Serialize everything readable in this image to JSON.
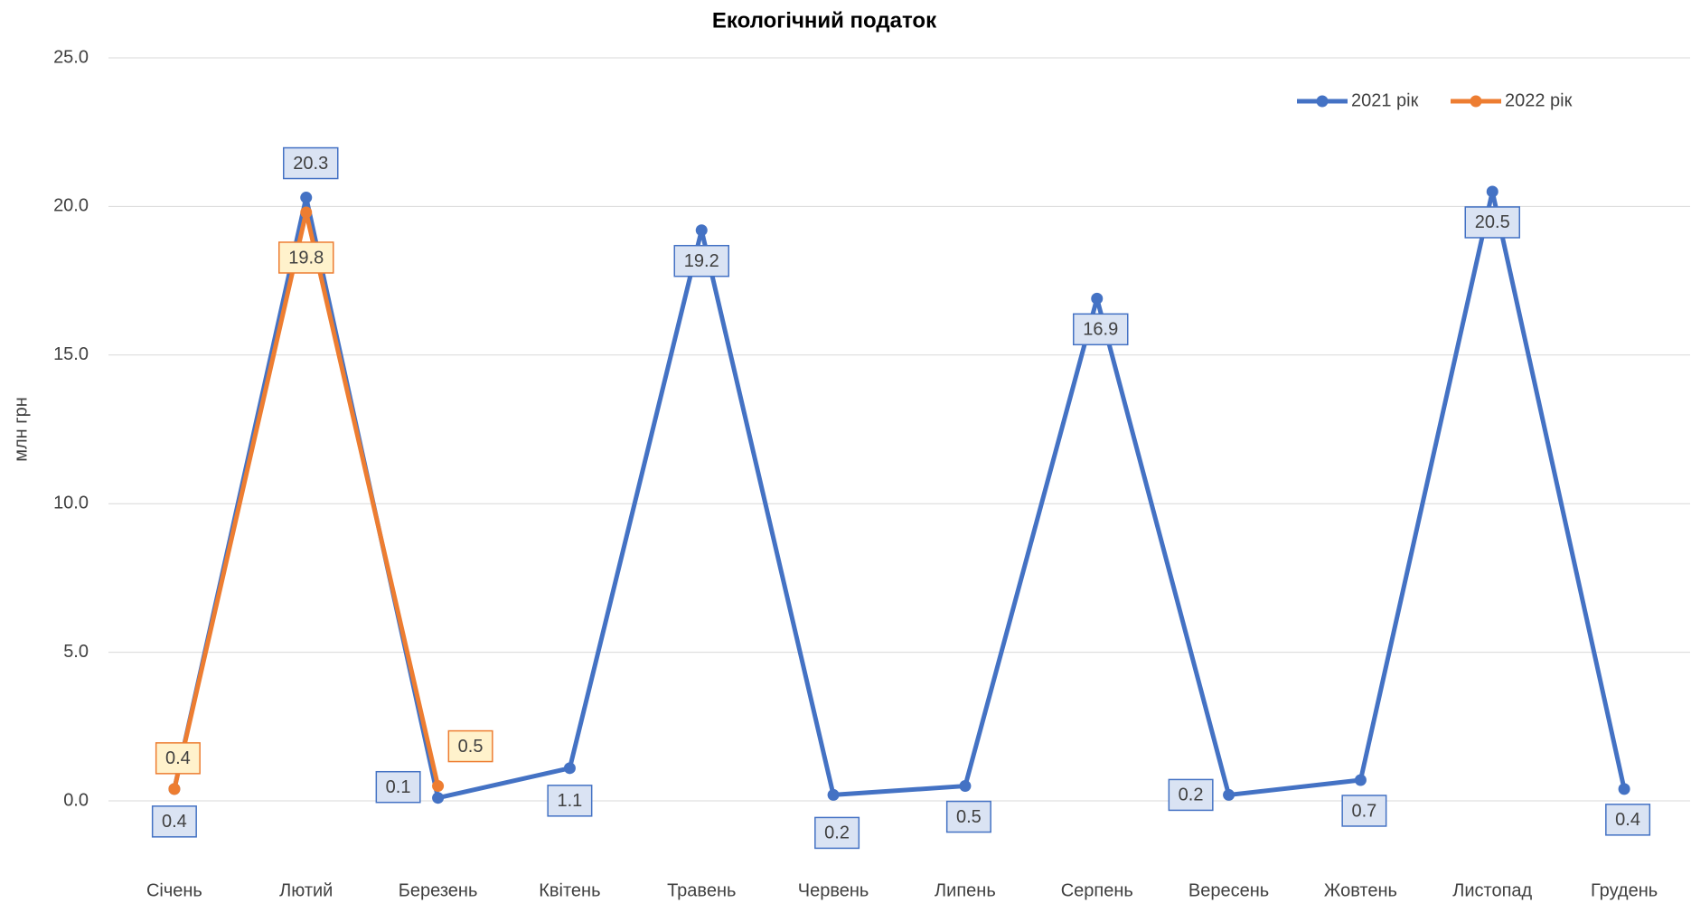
{
  "chart_data": {
    "type": "line",
    "title": "Екологічний податок",
    "y_label": "млн грн",
    "categories": [
      "Січень",
      "Лютий",
      "Березень",
      "Квітень",
      "Травень",
      "Червень",
      "Липень",
      "Серпень",
      "Вересень",
      "Жовтень",
      "Листопад",
      "Грудень"
    ],
    "series": [
      {
        "name": "2021 рік",
        "color": "#4472c4",
        "values": [
          0.4,
          20.3,
          0.1,
          1.1,
          19.2,
          0.2,
          0.5,
          16.9,
          0.2,
          0.7,
          20.5,
          0.4
        ]
      },
      {
        "name": "2022 рік",
        "color": "#ed7d31",
        "values": [
          0.4,
          19.8,
          0.5,
          null,
          null,
          null,
          null,
          null,
          null,
          null,
          null,
          null
        ]
      }
    ],
    "ylim": [
      0,
      25
    ],
    "yticks": [
      {
        "value": 0,
        "label": "0.0"
      },
      {
        "value": 5,
        "label": "5.0"
      },
      {
        "value": 10,
        "label": "10.0"
      },
      {
        "value": 15,
        "label": "15.0"
      },
      {
        "value": 20,
        "label": "20.0"
      },
      {
        "value": 25,
        "label": "25.0"
      }
    ],
    "grid": true,
    "legend": "top-right"
  }
}
